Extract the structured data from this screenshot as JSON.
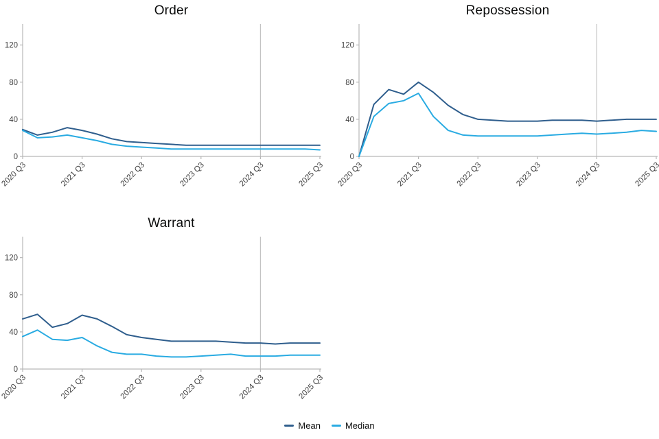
{
  "axis": {
    "line_color": "#b7b7b7",
    "tick_color": "#b7b7b7",
    "label_color": "#414141"
  },
  "legend": {
    "items": [
      {
        "label": "Mean"
      },
      {
        "label": "Median"
      }
    ]
  },
  "chart_data": [
    {
      "type": "line",
      "title": "Order",
      "categories": [
        "2020 Q3",
        "2020 Q4",
        "2021 Q1",
        "2021 Q2",
        "2021 Q3",
        "2021 Q4",
        "2022 Q1",
        "2022 Q2",
        "2022 Q3",
        "2022 Q4",
        "2023 Q1",
        "2023 Q2",
        "2023 Q3",
        "2023 Q4",
        "2024 Q1",
        "2024 Q2",
        "2024 Q3",
        "2024 Q4",
        "2025 Q1",
        "2025 Q2",
        "2025 Q3"
      ],
      "x_ticks": [
        "2020 Q3",
        "2021 Q3",
        "2022 Q3",
        "2023 Q3",
        "2024 Q3",
        "2025 Q3"
      ],
      "y_ticks": [
        0,
        40,
        80,
        120
      ],
      "ylim": [
        0,
        142
      ],
      "grid": "off",
      "legend_position": "bottom",
      "reference_line": {
        "x": "2024 Q3",
        "color": "#c3c3c3"
      },
      "series": [
        {
          "name": "Mean",
          "color": "#2f5e8d",
          "values": [
            29,
            23,
            26,
            31,
            28,
            24,
            19,
            16,
            15,
            14,
            13,
            12,
            12,
            12,
            12,
            12,
            12,
            12,
            12,
            12,
            12
          ]
        },
        {
          "name": "Median",
          "color": "#29abe2",
          "values": [
            28,
            20,
            21,
            23,
            20,
            17,
            13,
            11,
            10,
            9,
            8,
            8,
            8,
            8,
            8,
            8,
            8,
            8,
            8,
            8,
            7
          ]
        }
      ]
    },
    {
      "type": "line",
      "title": "Repossession",
      "categories": [
        "2020 Q3",
        "2020 Q4",
        "2021 Q1",
        "2021 Q2",
        "2021 Q3",
        "2021 Q4",
        "2022 Q1",
        "2022 Q2",
        "2022 Q3",
        "2022 Q4",
        "2023 Q1",
        "2023 Q2",
        "2023 Q3",
        "2023 Q4",
        "2024 Q1",
        "2024 Q2",
        "2024 Q3",
        "2024 Q4",
        "2025 Q1",
        "2025 Q2",
        "2025 Q3"
      ],
      "x_ticks": [
        "2020 Q3",
        "2021 Q3",
        "2022 Q3",
        "2023 Q3",
        "2024 Q3",
        "2025 Q3"
      ],
      "y_ticks": [
        0,
        40,
        80,
        120
      ],
      "ylim": [
        0,
        142
      ],
      "grid": "off",
      "legend_position": "bottom",
      "reference_line": {
        "x": "2024 Q3",
        "color": "#c3c3c3"
      },
      "series": [
        {
          "name": "Mean",
          "color": "#2f5e8d",
          "values": [
            0,
            56,
            72,
            67,
            80,
            69,
            55,
            45,
            40,
            39,
            38,
            38,
            38,
            39,
            39,
            39,
            38,
            39,
            40,
            40,
            40
          ]
        },
        {
          "name": "Median",
          "color": "#29abe2",
          "values": [
            0,
            43,
            57,
            60,
            68,
            43,
            28,
            23,
            22,
            22,
            22,
            22,
            22,
            23,
            24,
            25,
            24,
            25,
            26,
            28,
            27
          ]
        }
      ]
    },
    {
      "type": "line",
      "title": "Warrant",
      "categories": [
        "2020 Q3",
        "2020 Q4",
        "2021 Q1",
        "2021 Q2",
        "2021 Q3",
        "2021 Q4",
        "2022 Q1",
        "2022 Q2",
        "2022 Q3",
        "2022 Q4",
        "2023 Q1",
        "2023 Q2",
        "2023 Q3",
        "2023 Q4",
        "2024 Q1",
        "2024 Q2",
        "2024 Q3",
        "2024 Q4",
        "2025 Q1",
        "2025 Q2",
        "2025 Q3"
      ],
      "x_ticks": [
        "2020 Q3",
        "2021 Q3",
        "2022 Q3",
        "2023 Q3",
        "2024 Q3",
        "2025 Q3"
      ],
      "y_ticks": [
        0,
        40,
        80,
        120
      ],
      "ylim": [
        0,
        142
      ],
      "grid": "off",
      "legend_position": "bottom",
      "reference_line": {
        "x": "2024 Q3",
        "color": "#c3c3c3"
      },
      "series": [
        {
          "name": "Mean",
          "color": "#2f5e8d",
          "values": [
            54,
            59,
            45,
            49,
            58,
            54,
            46,
            37,
            34,
            32,
            30,
            30,
            30,
            30,
            29,
            28,
            28,
            27,
            28,
            28,
            28
          ]
        },
        {
          "name": "Median",
          "color": "#29abe2",
          "values": [
            35,
            42,
            32,
            31,
            34,
            25,
            18,
            16,
            16,
            14,
            13,
            13,
            14,
            15,
            16,
            14,
            14,
            14,
            15,
            15,
            15
          ]
        }
      ]
    }
  ]
}
